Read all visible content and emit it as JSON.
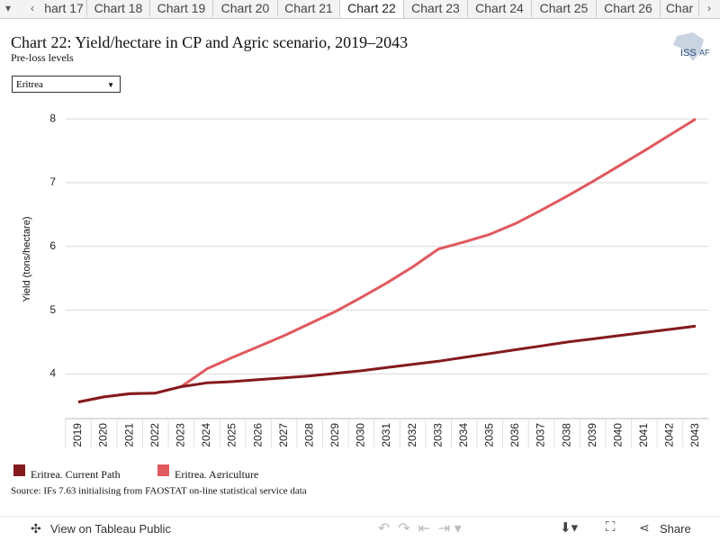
{
  "tabs": [
    "hart 17",
    "Chart 18",
    "Chart 19",
    "Chart 20",
    "Chart 21",
    "Chart 22",
    "Chart 23",
    "Chart 24",
    "Chart 25",
    "Chart 26",
    "Char"
  ],
  "dropdown": "Eritrea",
  "logo": {
    "left": "ISS",
    "right": "AF"
  },
  "source": "Source: IFs 7.63 initialising from FAOSTAT on-line statistical service data",
  "toolbar": {
    "view": "View on Tableau Public",
    "share": "Share"
  },
  "chart_data": {
    "type": "line",
    "title": "Chart 22: Yield/hectare in CP and Agric scenario, 2019–2043",
    "subtitle": "Pre-loss levels",
    "y_label": "Yield (tons/hectare)",
    "categories": [
      "2019",
      "2020",
      "2021",
      "2022",
      "2023",
      "2024",
      "2025",
      "2026",
      "2027",
      "2028",
      "2029",
      "2030",
      "2031",
      "2032",
      "2033",
      "2034",
      "2035",
      "2036",
      "2037",
      "2038",
      "2039",
      "2040",
      "2041",
      "2042",
      "2043"
    ],
    "series": [
      {
        "name": "Eritrea, Agriculture",
        "color": "#e0595e",
        "values": [
          3.56,
          3.64,
          3.69,
          3.7,
          3.8,
          4.08,
          4.26,
          4.43,
          4.6,
          4.79,
          4.98,
          5.2,
          5.43,
          5.68,
          5.96,
          6.07,
          6.19,
          6.36,
          6.57,
          6.79,
          7.02,
          7.26,
          7.5,
          7.75,
          8.0
        ]
      },
      {
        "name": "Eritrea, Current Path",
        "color": "#841a1e",
        "values": [
          3.56,
          3.64,
          3.69,
          3.7,
          3.8,
          3.86,
          3.88,
          3.91,
          3.94,
          3.97,
          4.01,
          4.05,
          4.1,
          4.15,
          4.2,
          4.26,
          4.32,
          4.38,
          4.44,
          4.5,
          4.55,
          4.6,
          4.65,
          4.7,
          4.75
        ]
      }
    ],
    "ylim": [
      3.3,
      8.2
    ],
    "yticks": [
      4,
      5,
      6,
      7,
      8
    ],
    "grid": true
  }
}
